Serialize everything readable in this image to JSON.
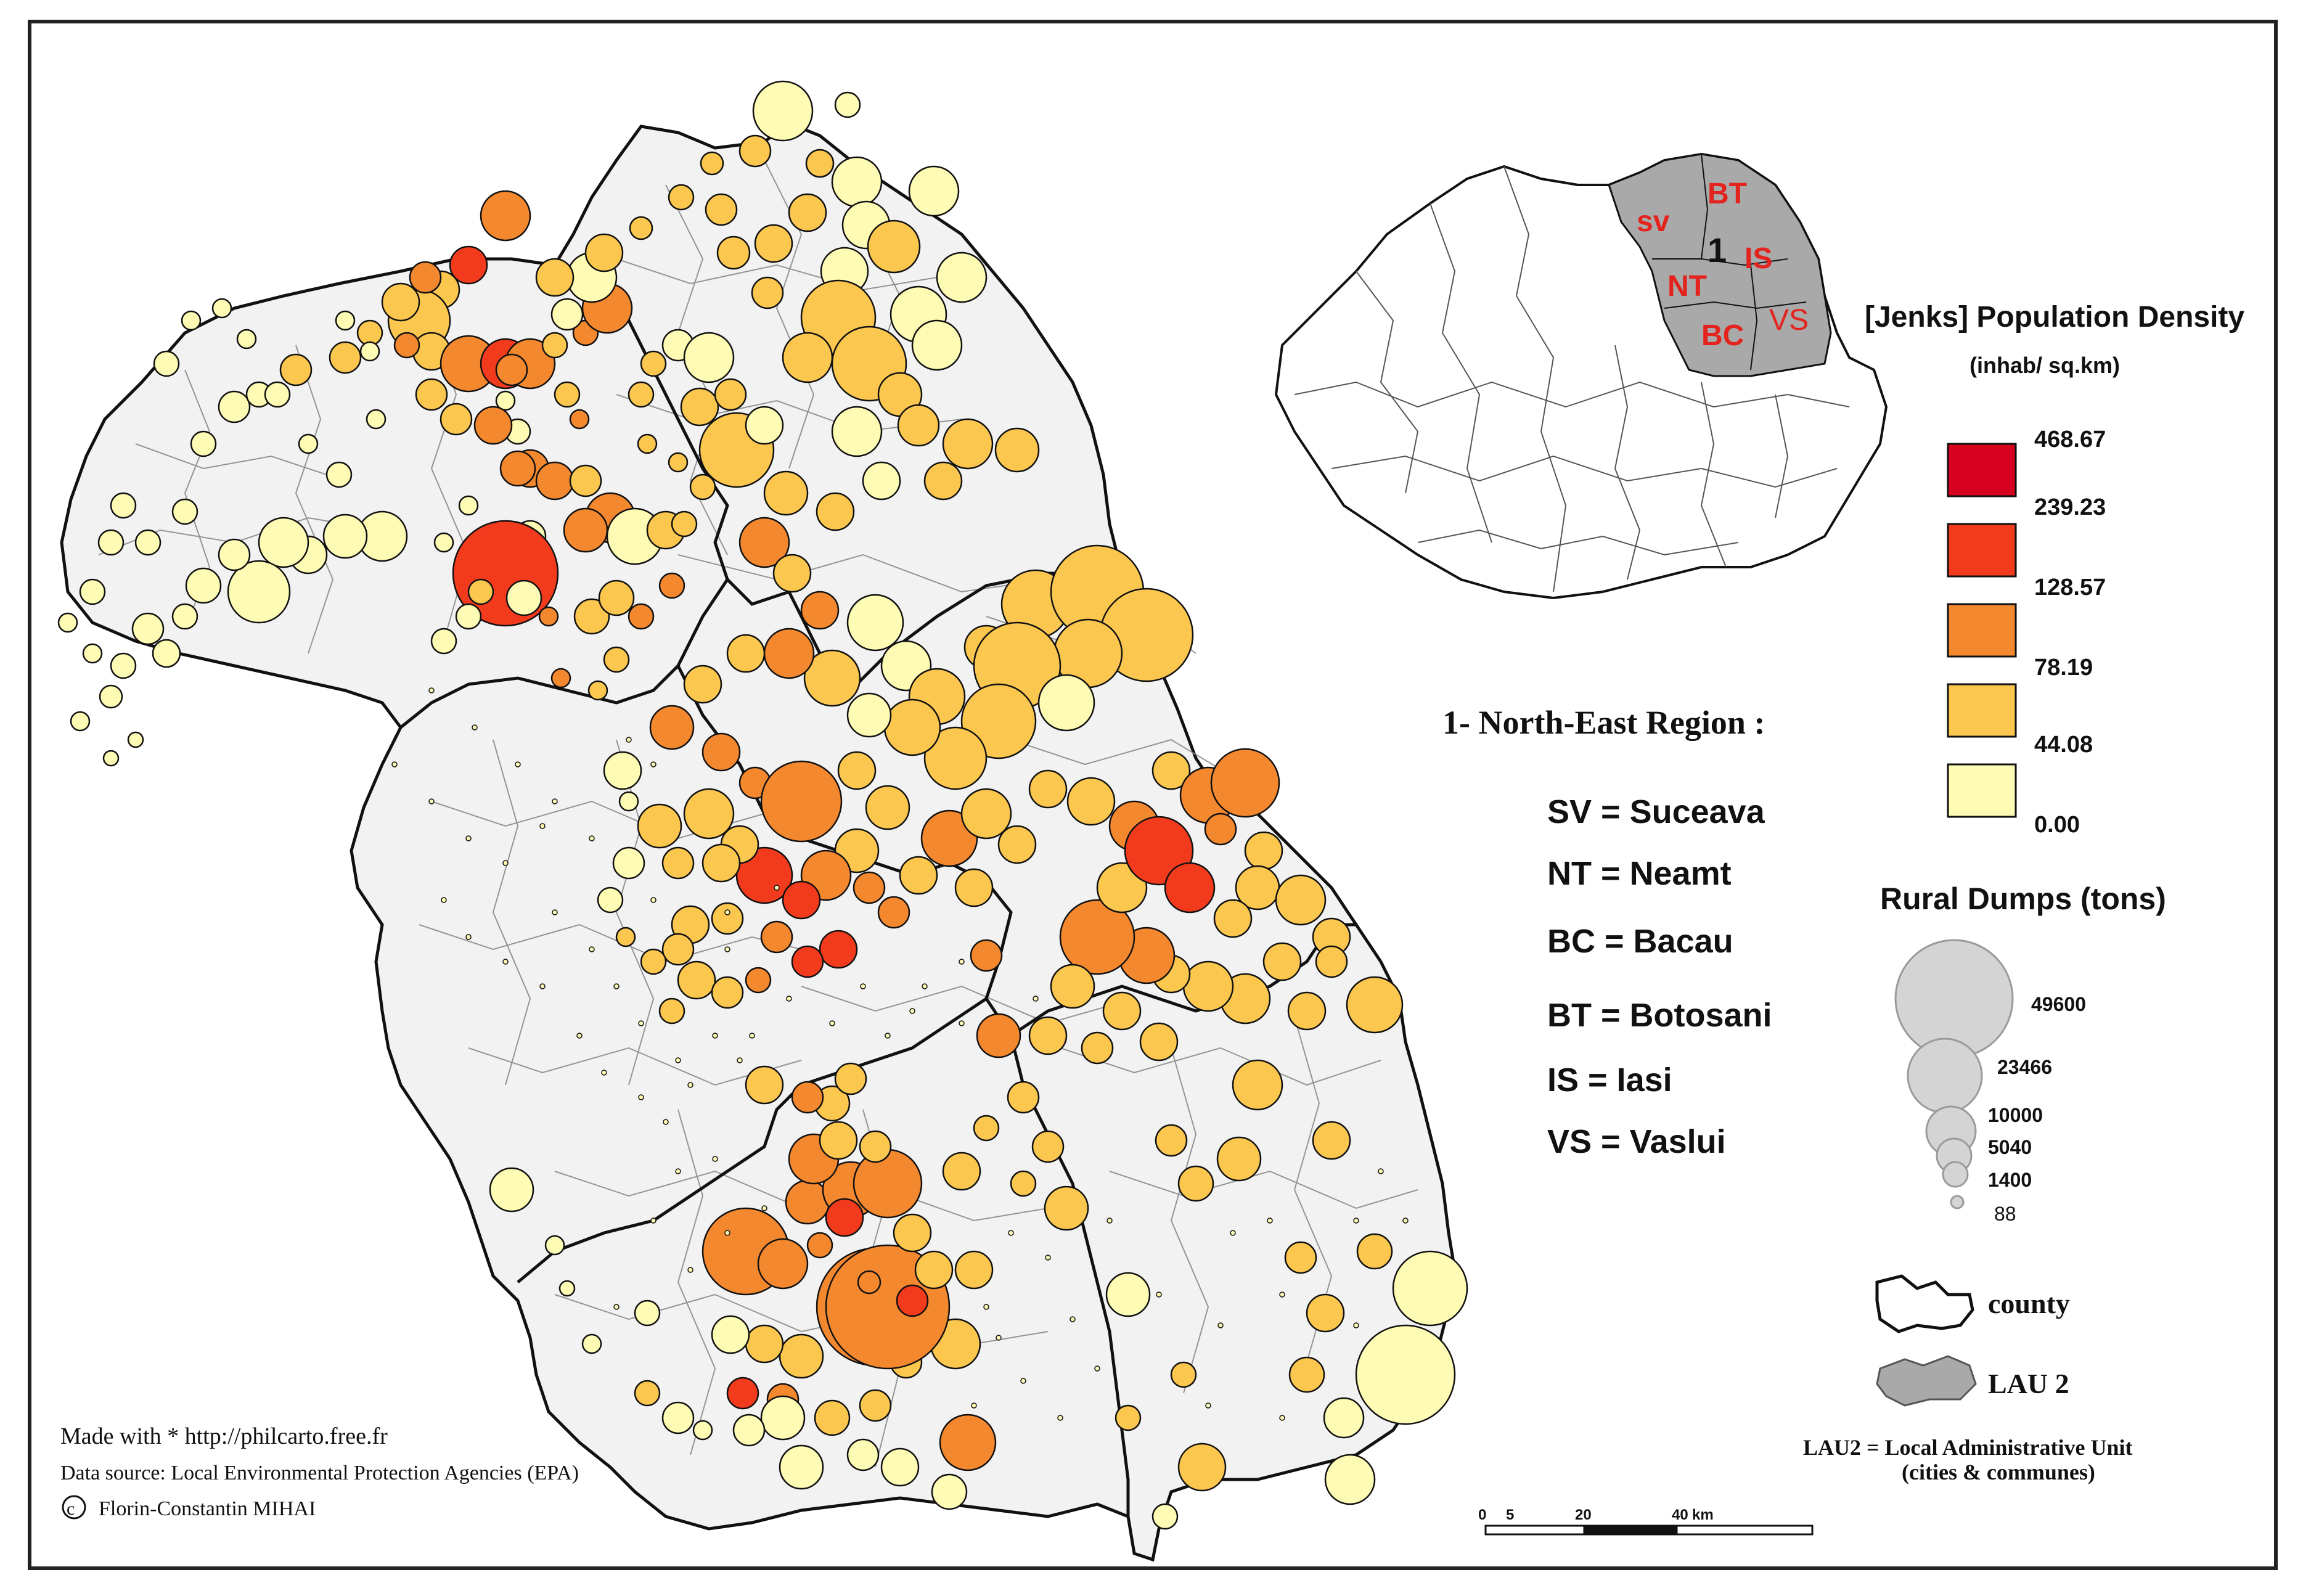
{
  "inset_map": {
    "county_codes": [
      {
        "code": "SV",
        "display": "sv"
      },
      {
        "code": "BT",
        "display": "BT"
      },
      {
        "code": "NT",
        "display": "NT"
      },
      {
        "code": "IS",
        "display": "IS"
      },
      {
        "code": "BC",
        "display": "BC"
      },
      {
        "code": "VS",
        "display": "VS"
      }
    ],
    "region_number": "1"
  },
  "density_legend": {
    "title": "[Jenks] Population Density",
    "unit": "(inhab/ sq.km)",
    "breaks": [
      "468.67",
      "239.23",
      "128.57",
      "78.19",
      "44.08",
      "0.00"
    ],
    "classes": [
      {
        "color": "#d7001f"
      },
      {
        "color": "#f23b1c"
      },
      {
        "color": "#f4882f"
      },
      {
        "color": "#fbc74f"
      },
      {
        "color": "#fdfbb4"
      }
    ]
  },
  "region_info": {
    "title": "1- North-East Region :",
    "counties": [
      {
        "text": "SV =  Suceava"
      },
      {
        "text": "NT =  Neamt"
      },
      {
        "text": "BC =  Bacau"
      },
      {
        "text": "BT = Botosani"
      },
      {
        "text": "IS =  Iasi"
      },
      {
        "text": "VS = Vaslui"
      }
    ]
  },
  "dumps_legend": {
    "title": "Rural Dumps (tons)",
    "values": [
      "49600",
      "23466",
      "10000",
      "5040",
      "1400",
      "88"
    ],
    "symbol_color": "#d4d4d4"
  },
  "boundary_legend": {
    "county": "county",
    "lau2": "LAU 2",
    "note_line1": "LAU2 = Local Administrative Unit",
    "note_line2": "(cities & communes)"
  },
  "scale_bar": {
    "ticks": [
      "0",
      "5",
      "20",
      "40"
    ],
    "unit": "km"
  },
  "credits": {
    "made_with": "Made with * http://philcarto.free.fr",
    "source": "Data source: Local Environmental Protection Agencies (EPA)",
    "author": "Florin-Constantin MIHAI"
  }
}
